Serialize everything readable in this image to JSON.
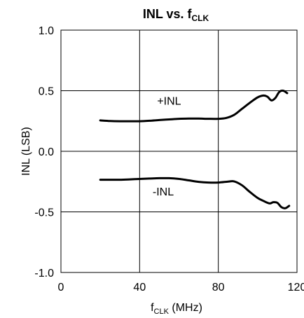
{
  "chart_data": {
    "type": "line",
    "title": {
      "main": "INL vs. f",
      "sub": "CLK"
    },
    "xlabel": {
      "main": "f",
      "sub": "CLK",
      "suffix": " (MHz)"
    },
    "ylabel": "INL (LSB)",
    "xlim": [
      0,
      120
    ],
    "ylim": [
      -1.0,
      1.0
    ],
    "x_ticks": [
      0,
      40,
      80,
      120
    ],
    "y_ticks": [
      -1.0,
      -0.5,
      0.0,
      0.5,
      1.0
    ],
    "x_tick_labels": [
      "0",
      "40",
      "80",
      "120"
    ],
    "y_tick_labels": [
      "-1.0",
      "-0.5",
      "0.0",
      "0.5",
      "1.0"
    ],
    "grid": true,
    "line_color": "#000000",
    "series": [
      {
        "name": "+INL",
        "label_at": [
          55,
          0.42
        ],
        "x": [
          20,
          25,
          30,
          35,
          40,
          45,
          50,
          55,
          60,
          65,
          70,
          75,
          80,
          84,
          88,
          92,
          96,
          100,
          103,
          105,
          107,
          109,
          111,
          113,
          115
        ],
        "y": [
          0.255,
          0.25,
          0.248,
          0.248,
          0.248,
          0.252,
          0.258,
          0.263,
          0.268,
          0.27,
          0.27,
          0.268,
          0.268,
          0.275,
          0.3,
          0.35,
          0.4,
          0.445,
          0.46,
          0.45,
          0.42,
          0.44,
          0.49,
          0.5,
          0.48
        ]
      },
      {
        "name": "-INL",
        "label_at": [
          52,
          -0.33
        ],
        "x": [
          20,
          25,
          30,
          35,
          40,
          45,
          50,
          55,
          60,
          65,
          70,
          75,
          80,
          85,
          88,
          92,
          96,
          100,
          103,
          106,
          108,
          110,
          112,
          114,
          116
        ],
        "y": [
          -0.235,
          -0.235,
          -0.235,
          -0.232,
          -0.228,
          -0.225,
          -0.222,
          -0.222,
          -0.228,
          -0.24,
          -0.252,
          -0.258,
          -0.258,
          -0.25,
          -0.248,
          -0.28,
          -0.335,
          -0.385,
          -0.41,
          -0.43,
          -0.42,
          -0.425,
          -0.46,
          -0.47,
          -0.45
        ]
      }
    ]
  }
}
